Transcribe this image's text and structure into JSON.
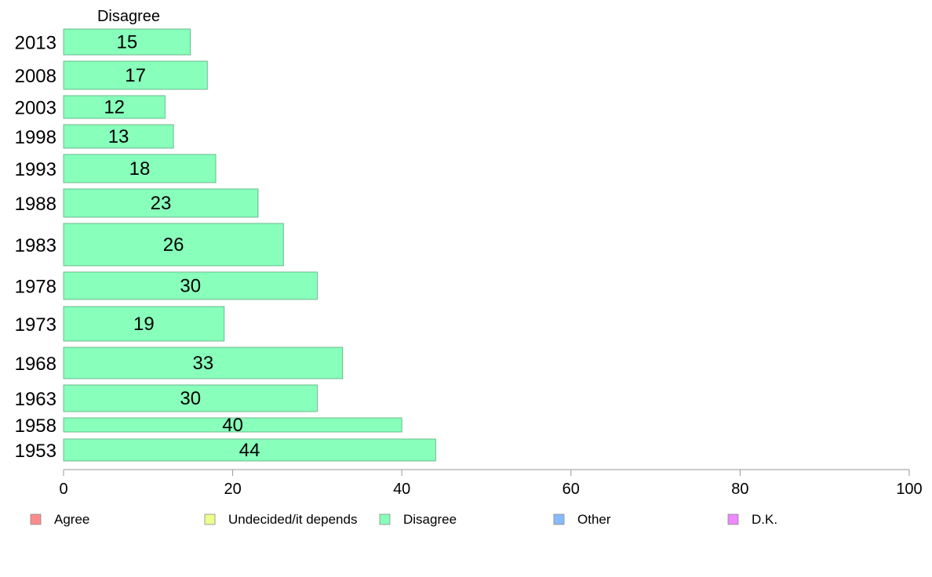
{
  "chart_data": {
    "type": "bar",
    "orientation": "horizontal",
    "panel_title": "Disagree",
    "categories": [
      "2013",
      "2008",
      "2003",
      "1998",
      "1993",
      "1988",
      "1983",
      "1978",
      "1973",
      "1968",
      "1963",
      "1958",
      "1953"
    ],
    "series": [
      {
        "name": "Disagree",
        "color": "#88ffbb",
        "values": [
          15,
          17,
          12,
          13,
          18,
          23,
          26,
          30,
          19,
          33,
          30,
          40,
          44
        ]
      }
    ],
    "xlim": [
      0,
      100
    ],
    "xticks": [
      0,
      20,
      40,
      60,
      80,
      100
    ],
    "legend": {
      "placement": "bottom",
      "items": [
        {
          "label": "Agree",
          "color": "#ff8c8c"
        },
        {
          "label": "Undecided/it depends",
          "color": "#eeff8c"
        },
        {
          "label": "Disagree",
          "color": "#88ffbb"
        },
        {
          "label": "Other",
          "color": "#88bbff"
        },
        {
          "label": "D.K.",
          "color": "#ee88ff"
        }
      ]
    }
  }
}
